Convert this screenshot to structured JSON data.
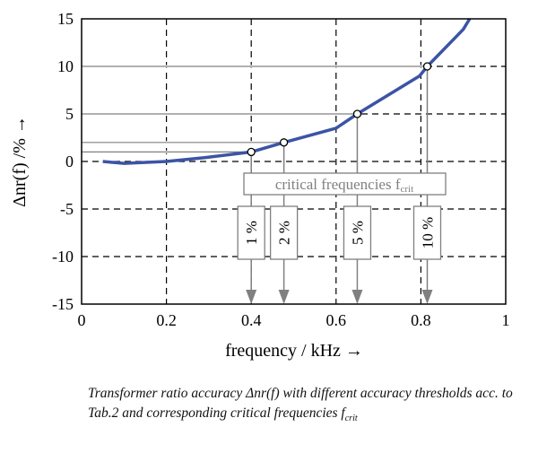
{
  "chart_data": {
    "type": "line",
    "xlabel": "frequency / kHz →",
    "ylabel": "Δnr(f) /% →",
    "xlim": [
      0,
      1
    ],
    "ylim": [
      -15,
      15
    ],
    "xticks": [
      "0",
      "0.2",
      "0.4",
      "0.6",
      "0.8",
      "1"
    ],
    "yticks": [
      "15",
      "10",
      "5",
      "0",
      "-5",
      "-10",
      "-15"
    ],
    "xtick_values": [
      0,
      0.2,
      0.4,
      0.6,
      0.8,
      1
    ],
    "ytick_values": [
      15,
      10,
      5,
      0,
      -5,
      -10,
      -15
    ],
    "grid": true,
    "series": [
      {
        "x": [
          0.05,
          0.1,
          0.2,
          0.29,
          0.4,
          0.477,
          0.6,
          0.65,
          0.797,
          0.815,
          0.9,
          0.915
        ],
        "y": [
          0,
          -0.2,
          0,
          0.4,
          1,
          2,
          3.5,
          5,
          9,
          10,
          13.9,
          15
        ],
        "color": "#3b54a5"
      }
    ],
    "critical_points": [
      {
        "x": 0.4,
        "y": 1,
        "label": "1 %"
      },
      {
        "x": 0.477,
        "y": 2,
        "label": "2 %"
      },
      {
        "x": 0.65,
        "y": 5,
        "label": "5 %"
      },
      {
        "x": 0.815,
        "y": 10,
        "label": "10 %"
      }
    ],
    "annotation": {
      "text": "critical frequencies f",
      "sub": "crit"
    }
  },
  "caption": {
    "text": "Transformer ratio accuracy Δnr(f) with different accuracy thresholds acc. to Tab.2 and corresponding critical frequencies f",
    "sub": "crit"
  }
}
